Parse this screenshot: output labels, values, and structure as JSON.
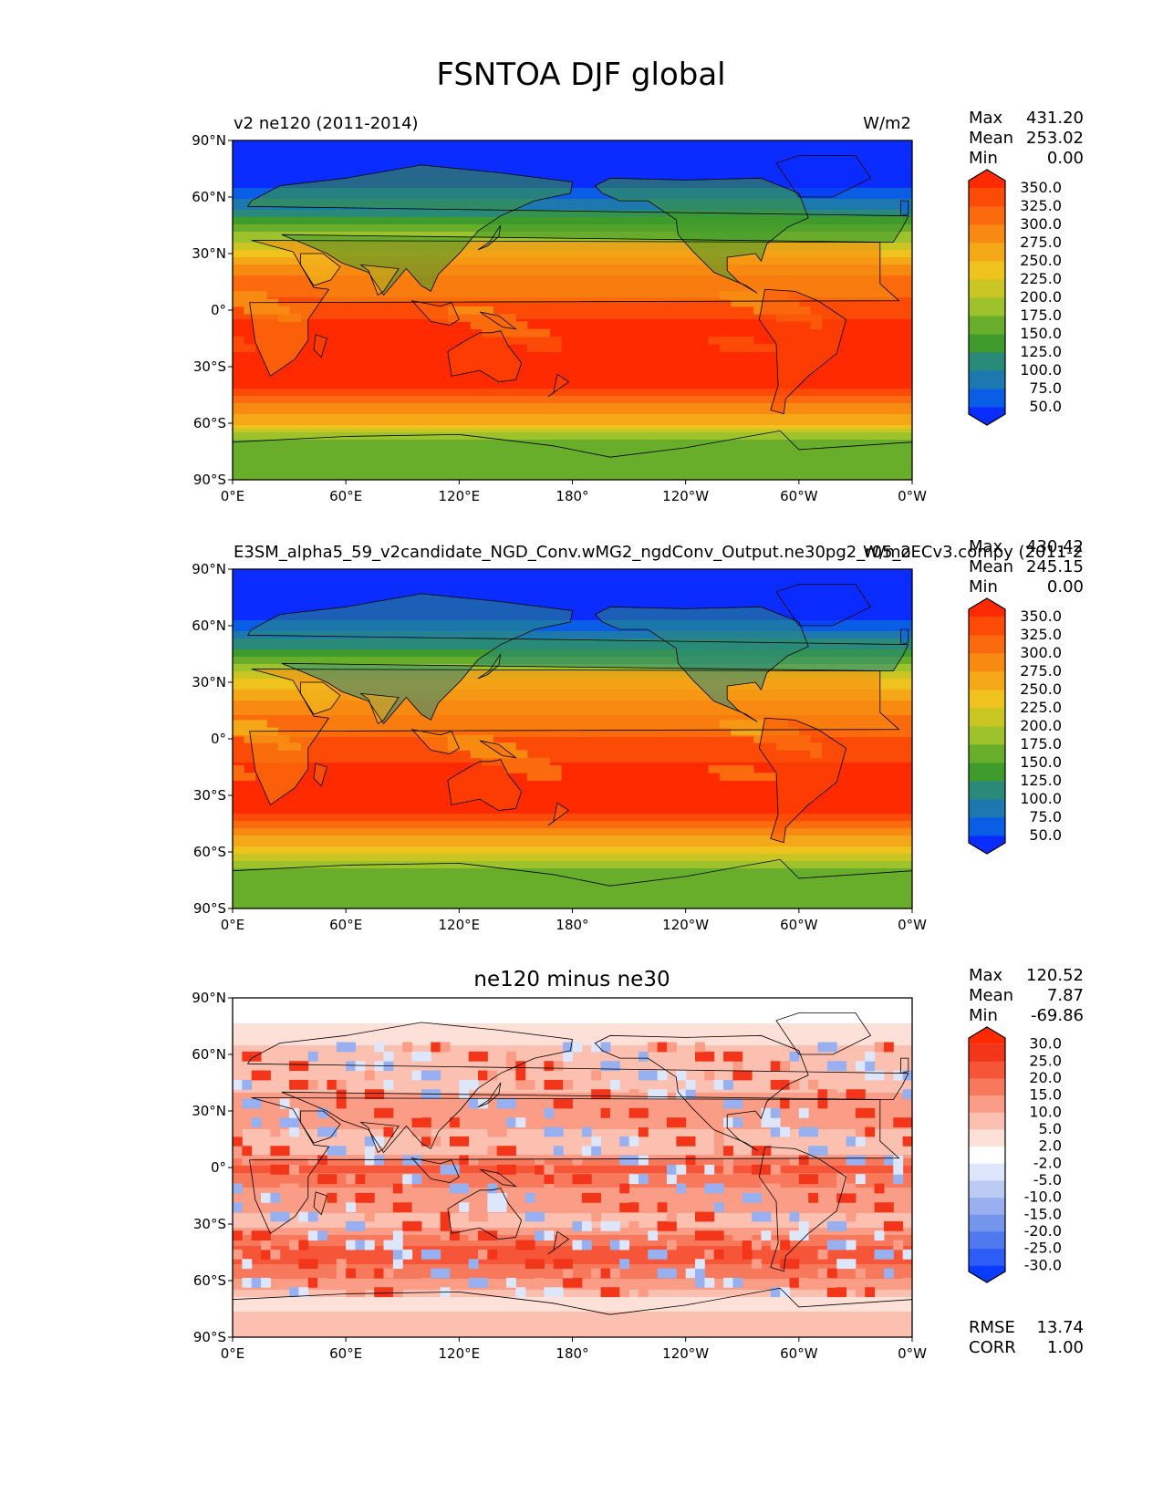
{
  "figure": {
    "title": "FSNTOA DJF global"
  },
  "chart_data": [
    {
      "type": "heatmap",
      "title": "v2 ne120 (2011-2014)",
      "units": "W/m2",
      "x_ticks": [
        "0°E",
        "60°E",
        "120°E",
        "180°",
        "120°W",
        "60°W",
        "0°W"
      ],
      "y_ticks": [
        "90°N",
        "60°N",
        "30°N",
        "0°",
        "30°S",
        "60°S",
        "90°S"
      ],
      "stats": {
        "max_label": "Max",
        "max": "431.20",
        "mean_label": "Mean",
        "mean": "253.02",
        "min_label": "Min",
        "min": "0.00"
      },
      "colorbar": {
        "levels": [
          "50.0",
          "75.0",
          "100.0",
          "125.0",
          "150.0",
          "175.0",
          "200.0",
          "225.0",
          "250.0",
          "275.0",
          "300.0",
          "325.0",
          "350.0"
        ],
        "colors": [
          "#0a2cff",
          "#0a5ee6",
          "#1d78b0",
          "#2a8a7a",
          "#3e9b2c",
          "#69ae2a",
          "#9dc22b",
          "#c9c624",
          "#efc21d",
          "#f4a818",
          "#f88a12",
          "#fb6a0c",
          "#fc4a07",
          "#ff2a00"
        ]
      },
      "zonal_profile": [
        {
          "lat": 90,
          "v": 0
        },
        {
          "lat": 70,
          "v": 25
        },
        {
          "lat": 55,
          "v": 90
        },
        {
          "lat": 45,
          "v": 150
        },
        {
          "lat": 35,
          "v": 210
        },
        {
          "lat": 25,
          "v": 270
        },
        {
          "lat": 15,
          "v": 310
        },
        {
          "lat": 0,
          "v": 340
        },
        {
          "lat": -15,
          "v": 370
        },
        {
          "lat": -30,
          "v": 385
        },
        {
          "lat": -40,
          "v": 365
        },
        {
          "lat": -50,
          "v": 300
        },
        {
          "lat": -60,
          "v": 250
        },
        {
          "lat": -70,
          "v": 160
        },
        {
          "lat": -90,
          "v": 150
        }
      ]
    },
    {
      "type": "heatmap",
      "title": "E3SM_alpha5_59_v2candidate_NGD_Conv.wMG2_ngdConv_Output.ne30pg2_r05_oECv3.compy (2011-2",
      "units": "W/m2",
      "x_ticks": [
        "0°E",
        "60°E",
        "120°E",
        "180°",
        "120°W",
        "60°W",
        "0°W"
      ],
      "y_ticks": [
        "90°N",
        "60°N",
        "30°N",
        "0°",
        "30°S",
        "60°S",
        "90°S"
      ],
      "stats": {
        "max_label": "Max",
        "max": "430.42",
        "mean_label": "Mean",
        "mean": "245.15",
        "min_label": "Min",
        "min": "0.00"
      },
      "colorbar": {
        "levels": [
          "50.0",
          "75.0",
          "100.0",
          "125.0",
          "150.0",
          "175.0",
          "200.0",
          "225.0",
          "250.0",
          "275.0",
          "300.0",
          "325.0",
          "350.0"
        ],
        "colors": [
          "#0a2cff",
          "#0a5ee6",
          "#1d78b0",
          "#2a8a7a",
          "#3e9b2c",
          "#69ae2a",
          "#9dc22b",
          "#c9c624",
          "#efc21d",
          "#f4a818",
          "#f88a12",
          "#fb6a0c",
          "#fc4a07",
          "#ff2a00"
        ]
      },
      "zonal_profile": [
        {
          "lat": 90,
          "v": 0
        },
        {
          "lat": 70,
          "v": 25
        },
        {
          "lat": 55,
          "v": 85
        },
        {
          "lat": 45,
          "v": 140
        },
        {
          "lat": 35,
          "v": 205
        },
        {
          "lat": 25,
          "v": 260
        },
        {
          "lat": 15,
          "v": 295
        },
        {
          "lat": 0,
          "v": 325
        },
        {
          "lat": -15,
          "v": 355
        },
        {
          "lat": -30,
          "v": 370
        },
        {
          "lat": -40,
          "v": 350
        },
        {
          "lat": -50,
          "v": 285
        },
        {
          "lat": -60,
          "v": 240
        },
        {
          "lat": -70,
          "v": 160
        },
        {
          "lat": -90,
          "v": 150
        }
      ]
    },
    {
      "type": "heatmap",
      "title": "ne120 minus ne30",
      "units": "",
      "x_ticks": [
        "0°E",
        "60°E",
        "120°E",
        "180°",
        "120°W",
        "60°W",
        "0°W"
      ],
      "y_ticks": [
        "90°N",
        "60°N",
        "30°N",
        "0°",
        "30°S",
        "60°S",
        "90°S"
      ],
      "stats": {
        "max_label": "Max",
        "max": "120.52",
        "mean_label": "Mean",
        "mean": "7.87",
        "min_label": "Min",
        "min": "-69.86"
      },
      "extra_stats": {
        "rmse_label": "RMSE",
        "rmse": "13.74",
        "corr_label": "CORR",
        "corr": "1.00"
      },
      "colorbar": {
        "levels": [
          "-30.0",
          "-25.0",
          "-20.0",
          "-15.0",
          "-10.0",
          "-5.0",
          "-2.0",
          "2.0",
          "5.0",
          "10.0",
          "15.0",
          "20.0",
          "25.0",
          "30.0"
        ],
        "colors": [
          "#0a3cff",
          "#2d5cf6",
          "#4f79f0",
          "#7396ec",
          "#98b0ef",
          "#bccbf4",
          "#dde6fa",
          "#ffffff",
          "#fde0d8",
          "#fcc0b0",
          "#fa9c86",
          "#f8785c",
          "#f75537",
          "#f3361a",
          "#ff2a00"
        ]
      },
      "zonal_profile": [
        {
          "lat": 90,
          "v": 0
        },
        {
          "lat": 70,
          "v": 3
        },
        {
          "lat": 55,
          "v": 8
        },
        {
          "lat": 40,
          "v": 10
        },
        {
          "lat": 25,
          "v": 12
        },
        {
          "lat": 10,
          "v": 6
        },
        {
          "lat": 0,
          "v": 22
        },
        {
          "lat": -15,
          "v": 12
        },
        {
          "lat": -30,
          "v": 9
        },
        {
          "lat": -45,
          "v": 24
        },
        {
          "lat": -60,
          "v": 14
        },
        {
          "lat": -70,
          "v": 4
        },
        {
          "lat": -90,
          "v": 7
        }
      ]
    }
  ]
}
